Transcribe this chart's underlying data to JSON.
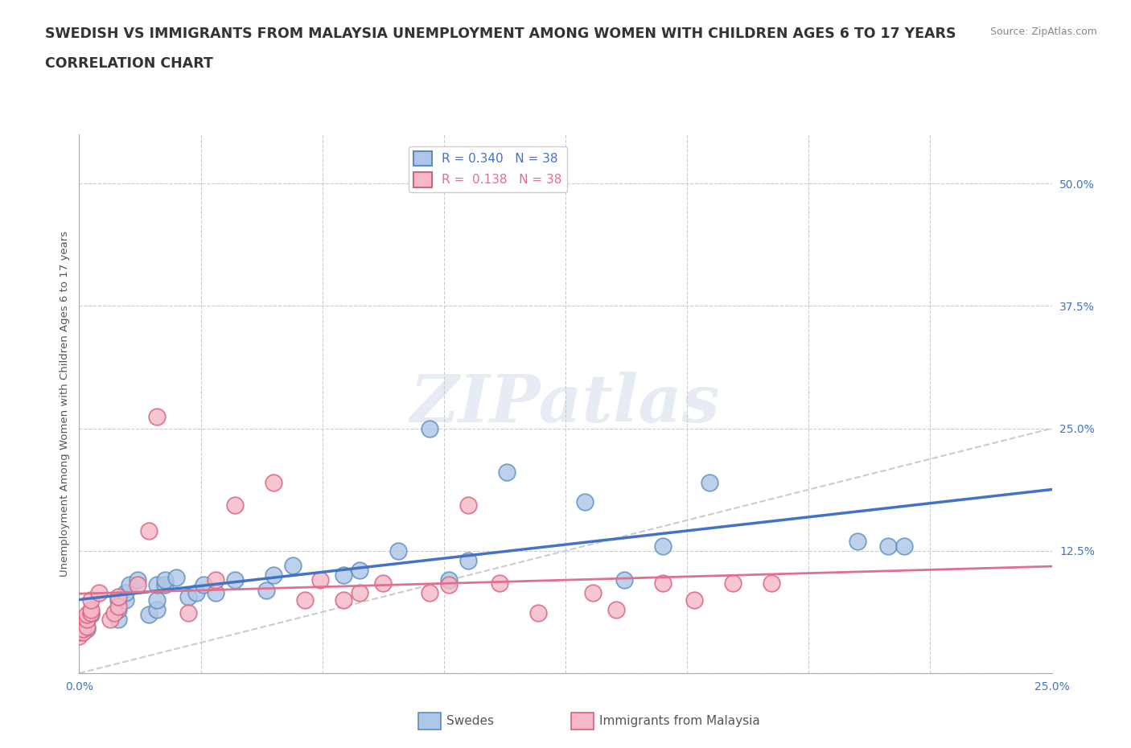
{
  "title_line1": "SWEDISH VS IMMIGRANTS FROM MALAYSIA UNEMPLOYMENT AMONG WOMEN WITH CHILDREN AGES 6 TO 17 YEARS",
  "title_line2": "CORRELATION CHART",
  "source_text": "Source: ZipAtlas.com",
  "ylabel": "Unemployment Among Women with Children Ages 6 to 17 years",
  "xlim": [
    0.0,
    0.25
  ],
  "ylim": [
    0.0,
    0.55
  ],
  "yticks": [
    0.0,
    0.125,
    0.25,
    0.375,
    0.5
  ],
  "ytick_labels": [
    "",
    "12.5%",
    "25.0%",
    "37.5%",
    "50.0%"
  ],
  "xticks": [
    0.0,
    0.03125,
    0.0625,
    0.09375,
    0.125,
    0.15625,
    0.1875,
    0.21875,
    0.25
  ],
  "xtick_labels": [
    "0.0%",
    "",
    "",
    "",
    "",
    "",
    "",
    "",
    "25.0%"
  ],
  "grid_color": "#cccccc",
  "background_color": "#ffffff",
  "swedes_color": "#aec6e8",
  "malaysia_color": "#f4b8c8",
  "swedes_edge_color": "#5b8dbe",
  "malaysia_edge_color": "#d9607a",
  "swedes_line_color": "#4472c4",
  "malaysia_line_color": "#e07090",
  "diagonal_color": "#cccccc",
  "tick_label_color": "#4472c4",
  "R_swedes": 0.34,
  "N_swedes": 38,
  "R_malaysia": 0.138,
  "N_malaysia": 38,
  "swedes_x": [
    0.002,
    0.003,
    0.01,
    0.01,
    0.01,
    0.012,
    0.012,
    0.013,
    0.015,
    0.018,
    0.02,
    0.02,
    0.02,
    0.022,
    0.022,
    0.025,
    0.028,
    0.03,
    0.032,
    0.035,
    0.04,
    0.048,
    0.05,
    0.055,
    0.068,
    0.072,
    0.082,
    0.09,
    0.095,
    0.1,
    0.11,
    0.13,
    0.14,
    0.15,
    0.162,
    0.2,
    0.208,
    0.212
  ],
  "swedes_y": [
    0.045,
    0.06,
    0.055,
    0.065,
    0.075,
    0.075,
    0.082,
    0.09,
    0.095,
    0.06,
    0.065,
    0.075,
    0.09,
    0.09,
    0.095,
    0.098,
    0.078,
    0.082,
    0.09,
    0.082,
    0.095,
    0.085,
    0.1,
    0.11,
    0.1,
    0.105,
    0.125,
    0.25,
    0.095,
    0.115,
    0.205,
    0.175,
    0.095,
    0.13,
    0.195,
    0.135,
    0.13,
    0.13
  ],
  "malaysia_x": [
    0.0,
    0.0,
    0.001,
    0.001,
    0.002,
    0.002,
    0.002,
    0.003,
    0.003,
    0.003,
    0.005,
    0.008,
    0.009,
    0.01,
    0.01,
    0.015,
    0.018,
    0.02,
    0.028,
    0.035,
    0.04,
    0.05,
    0.058,
    0.062,
    0.068,
    0.072,
    0.078,
    0.09,
    0.095,
    0.1,
    0.108,
    0.118,
    0.132,
    0.138,
    0.15,
    0.158,
    0.168,
    0.178
  ],
  "malaysia_y": [
    0.038,
    0.042,
    0.042,
    0.045,
    0.048,
    0.055,
    0.06,
    0.062,
    0.065,
    0.075,
    0.082,
    0.055,
    0.062,
    0.068,
    0.078,
    0.09,
    0.145,
    0.262,
    0.062,
    0.095,
    0.172,
    0.195,
    0.075,
    0.095,
    0.075,
    0.082,
    0.092,
    0.082,
    0.09,
    0.172,
    0.092,
    0.062,
    0.082,
    0.065,
    0.092,
    0.075,
    0.092,
    0.092
  ],
  "watermark_text": "ZIPatlas",
  "title_fontsize": 12.5,
  "subtitle_fontsize": 12.5,
  "axis_label_fontsize": 9.5,
  "tick_fontsize": 10,
  "legend_fontsize": 11,
  "source_fontsize": 9
}
